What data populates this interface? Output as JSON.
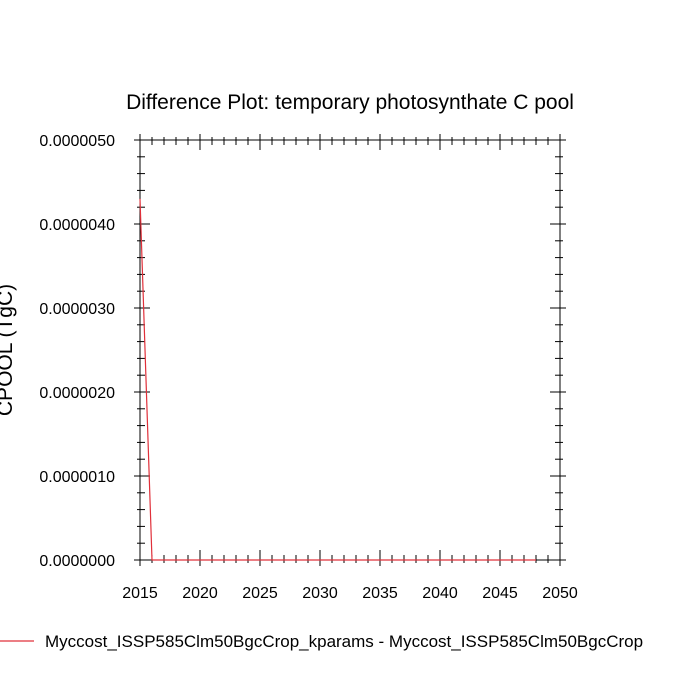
{
  "chart_data": {
    "type": "line",
    "title": "Difference Plot: temporary photosynthate C pool",
    "xlabel": "",
    "ylabel": "CPOOL (TgC)",
    "xlim": [
      2015,
      2050
    ],
    "ylim": [
      0,
      5e-06
    ],
    "x_ticks": [
      2015,
      2020,
      2025,
      2030,
      2035,
      2040,
      2045,
      2050
    ],
    "x_tick_labels": [
      "2015",
      "2020",
      "2025",
      "2030",
      "2035",
      "2040",
      "2045",
      "2050"
    ],
    "y_ticks": [
      0,
      1e-06,
      2e-06,
      3e-06,
      4e-06,
      5e-06
    ],
    "y_tick_labels": [
      "0.0000000",
      "0.0000010",
      "0.0000020",
      "0.0000030",
      "0.0000040",
      "0.0000050"
    ],
    "grid": false,
    "legend_position": "bottom",
    "series": [
      {
        "name": "Myccost_ISSP585Clm50BgcCrop_kparams - Myccost_ISSP585Clm50BgcCrop",
        "color": "#e0303a",
        "x": [
          2015,
          2016,
          2017,
          2018,
          2019,
          2020,
          2021,
          2022,
          2023,
          2024,
          2025,
          2026,
          2027,
          2028,
          2029,
          2030,
          2031,
          2032,
          2033,
          2034,
          2035,
          2036,
          2037,
          2038,
          2039,
          2040,
          2041,
          2042,
          2043,
          2044,
          2045,
          2046,
          2047,
          2048
        ],
        "values": [
          4.3e-06,
          0,
          0,
          0,
          0,
          0,
          0,
          0,
          0,
          0,
          0,
          0,
          0,
          0,
          0,
          0,
          0,
          0,
          0,
          0,
          0,
          0,
          0,
          0,
          0,
          0,
          0,
          0,
          0,
          0,
          0,
          0,
          0,
          0
        ]
      }
    ]
  }
}
